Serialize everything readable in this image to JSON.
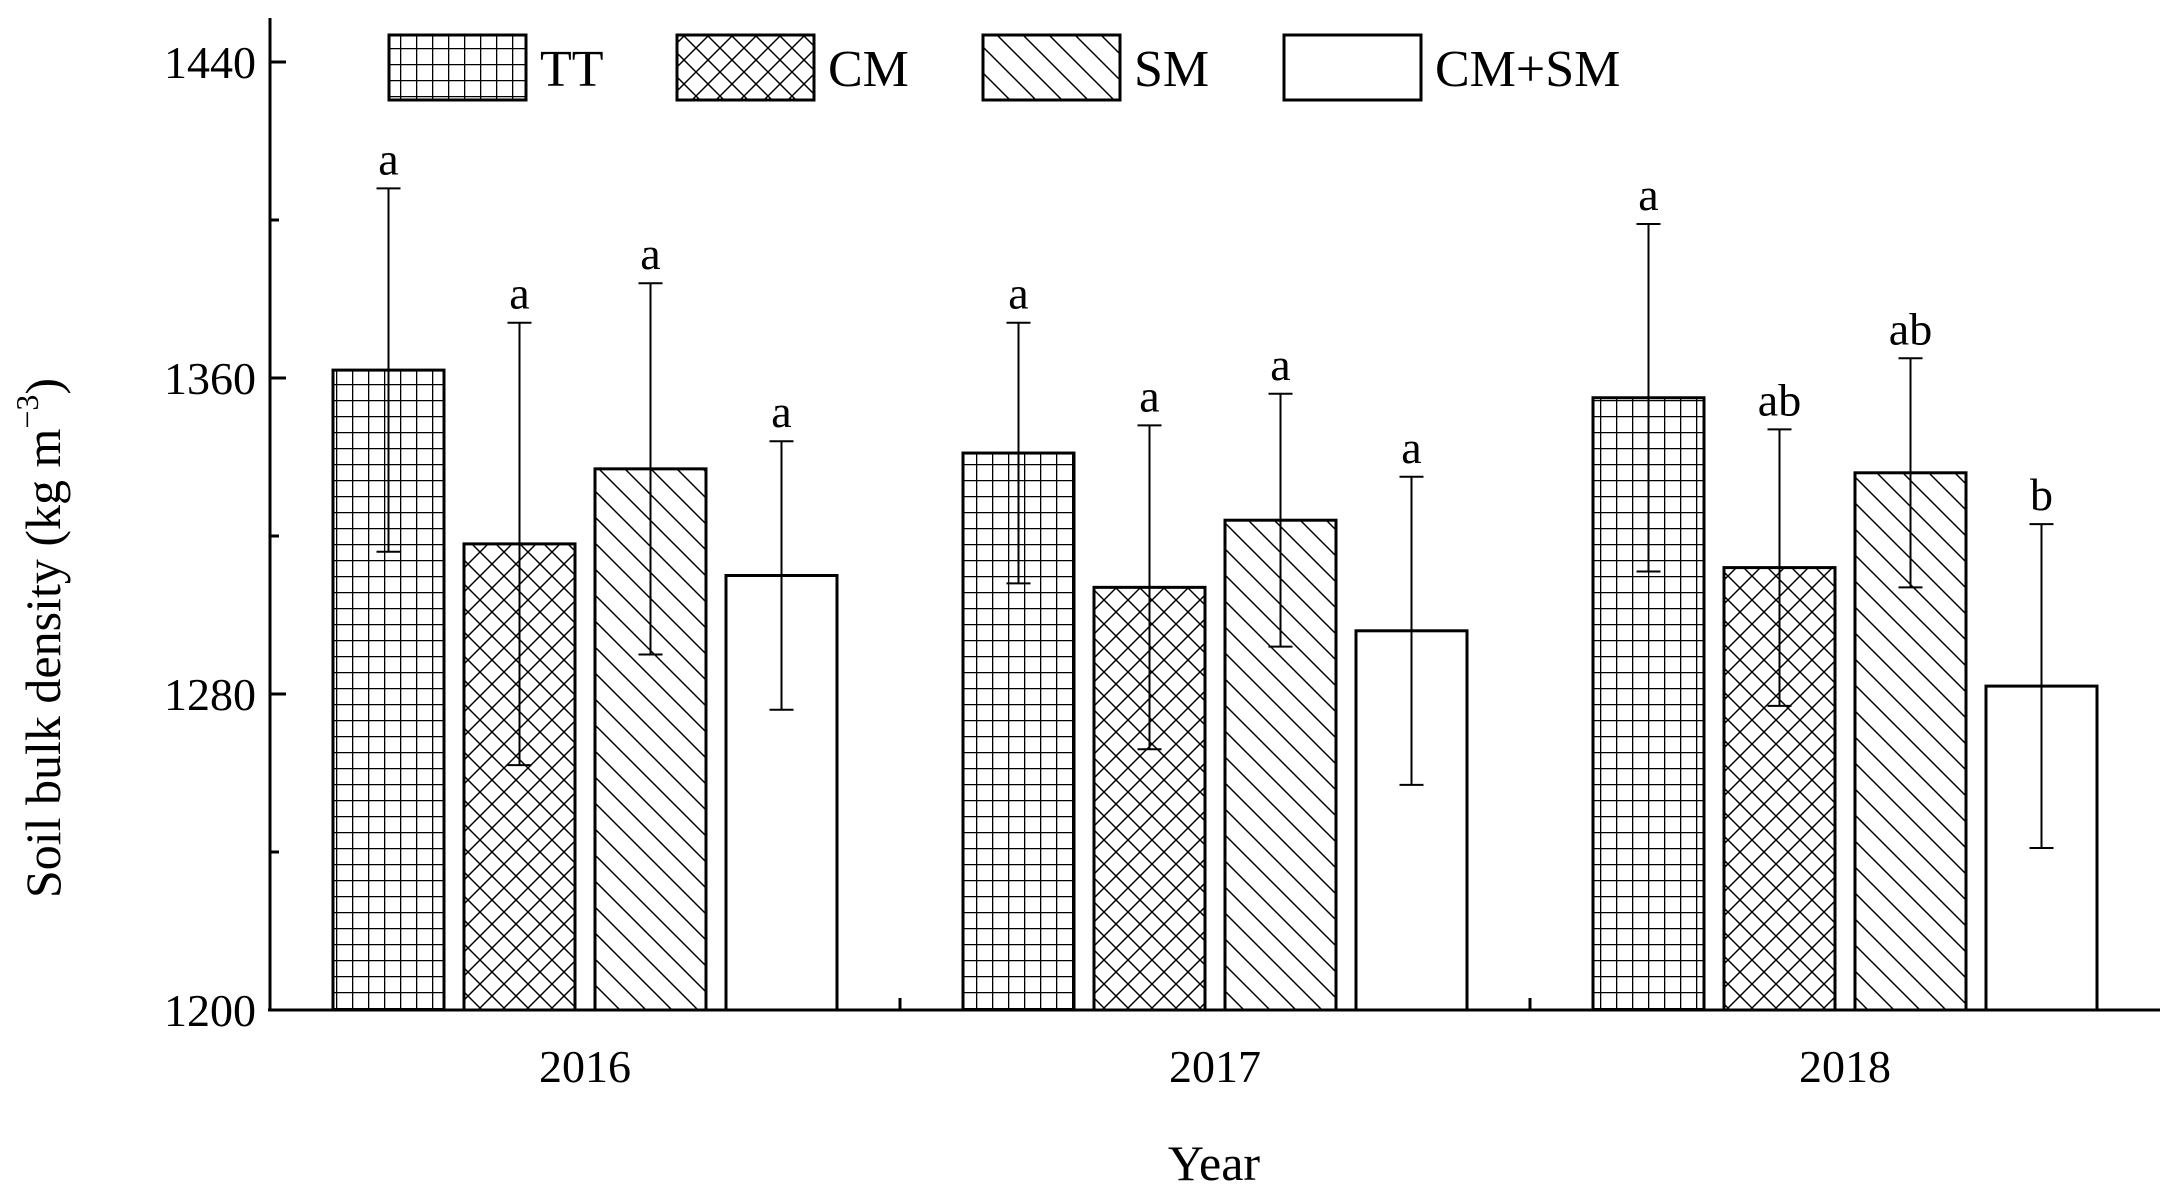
{
  "chart_data": {
    "type": "bar",
    "title": "",
    "xlabel": "Year",
    "ylabel": "Soil bulk density (kg m",
    "ylabel_superscript": "−3",
    "ylabel_close": ")",
    "ylim": [
      1200,
      1440
    ],
    "yticks": [
      "1200",
      "1280",
      "1360",
      "1440"
    ],
    "categories": [
      "2016",
      "2017",
      "2018"
    ],
    "legend_position": "top",
    "series": [
      {
        "name": "TT",
        "pattern": "grid",
        "values": [
          1362,
          1341,
          1355
        ],
        "errors": [
          46,
          33,
          44
        ],
        "letters": [
          "a",
          "a",
          "a"
        ]
      },
      {
        "name": "CM",
        "pattern": "crosshatch",
        "values": [
          1318,
          1307,
          1312
        ],
        "errors": [
          56,
          41,
          35
        ],
        "letters": [
          "a",
          "a",
          "ab"
        ]
      },
      {
        "name": "SM",
        "pattern": "diagonal",
        "values": [
          1337,
          1324,
          1336
        ],
        "errors": [
          47,
          32,
          29
        ],
        "letters": [
          "a",
          "a",
          "ab"
        ]
      },
      {
        "name": "CM+SM",
        "pattern": "none",
        "values": [
          1310,
          1296,
          1282
        ],
        "errors": [
          34,
          39,
          41
        ],
        "letters": [
          "a",
          "a",
          "b"
        ]
      }
    ]
  }
}
